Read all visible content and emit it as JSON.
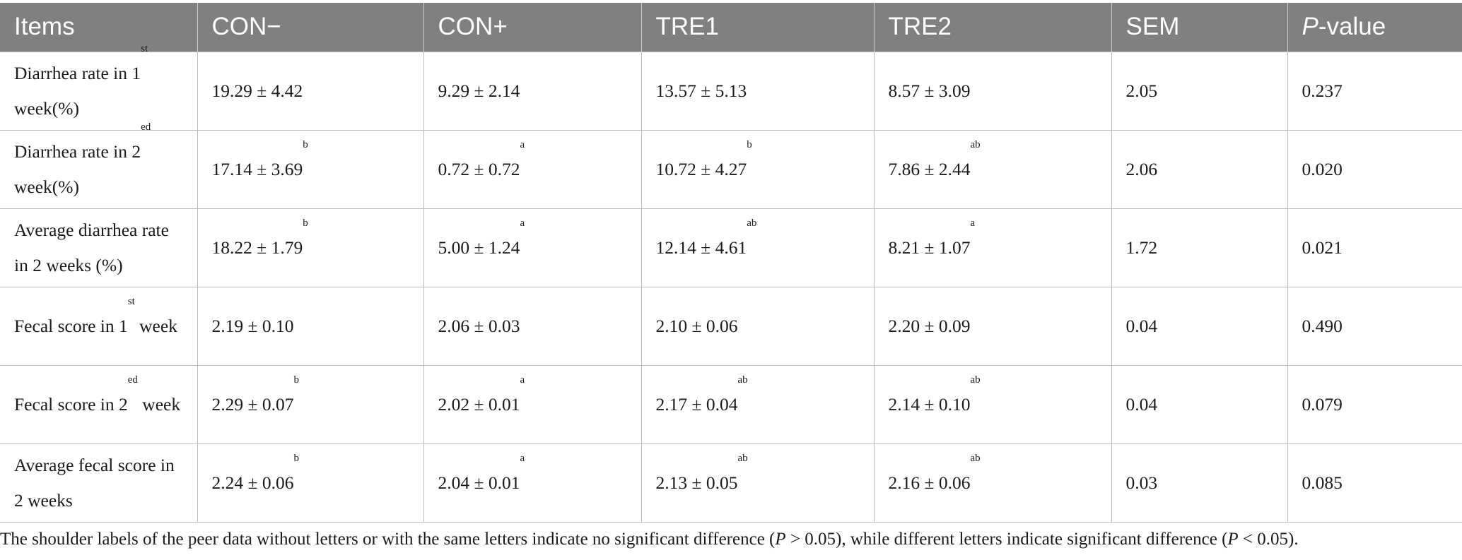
{
  "table": {
    "headers": [
      "Items",
      "CON−",
      "CON+",
      "TRE1",
      "TRE2",
      "SEM",
      "P-value"
    ],
    "header_pvalue_italic": "P",
    "header_pvalue_rest": "-value",
    "rows": [
      {
        "label_pre": "Diarrhea rate in 1",
        "label_sup": "st",
        "label_post": " week(%)",
        "cells": [
          {
            "v": "19.29 ± 4.42",
            "s": ""
          },
          {
            "v": "9.29 ± 2.14",
            "s": ""
          },
          {
            "v": "13.57 ± 5.13",
            "s": ""
          },
          {
            "v": "8.57 ± 3.09",
            "s": ""
          },
          {
            "v": "2.05",
            "s": ""
          },
          {
            "v": "0.237",
            "s": ""
          }
        ]
      },
      {
        "label_pre": "Diarrhea rate in 2",
        "label_sup": "ed",
        "label_post": " week(%)",
        "cells": [
          {
            "v": "17.14 ± 3.69",
            "s": "b"
          },
          {
            "v": "0.72 ± 0.72",
            "s": "a"
          },
          {
            "v": "10.72 ± 4.27",
            "s": "b"
          },
          {
            "v": "7.86 ± 2.44",
            "s": "ab"
          },
          {
            "v": "2.06",
            "s": ""
          },
          {
            "v": "0.020",
            "s": ""
          }
        ]
      },
      {
        "label_pre": "Average diarrhea rate in 2 weeks (%)",
        "label_sup": "",
        "label_post": "",
        "cells": [
          {
            "v": "18.22 ± 1.79",
            "s": "b"
          },
          {
            "v": "5.00 ± 1.24",
            "s": "a"
          },
          {
            "v": "12.14 ± 4.61",
            "s": "ab"
          },
          {
            "v": "8.21 ± 1.07",
            "s": "a"
          },
          {
            "v": "1.72",
            "s": ""
          },
          {
            "v": "0.021",
            "s": ""
          }
        ]
      },
      {
        "label_pre": "Fecal score in 1",
        "label_sup": "st",
        "label_post": " week",
        "cells": [
          {
            "v": "2.19 ± 0.10",
            "s": ""
          },
          {
            "v": "2.06 ± 0.03",
            "s": ""
          },
          {
            "v": "2.10 ± 0.06",
            "s": ""
          },
          {
            "v": "2.20 ± 0.09",
            "s": ""
          },
          {
            "v": "0.04",
            "s": ""
          },
          {
            "v": "0.490",
            "s": ""
          }
        ]
      },
      {
        "label_pre": "Fecal score in 2",
        "label_sup": "ed",
        "label_post": " week",
        "cells": [
          {
            "v": "2.29 ± 0.07",
            "s": "b"
          },
          {
            "v": "2.02 ± 0.01",
            "s": "a"
          },
          {
            "v": "2.17 ± 0.04",
            "s": "ab"
          },
          {
            "v": "2.14 ± 0.10",
            "s": "ab"
          },
          {
            "v": "0.04",
            "s": ""
          },
          {
            "v": "0.079",
            "s": ""
          }
        ]
      },
      {
        "label_pre": "Average fecal score in 2 weeks",
        "label_sup": "",
        "label_post": "",
        "cells": [
          {
            "v": "2.24 ± 0.06",
            "s": "b"
          },
          {
            "v": "2.04 ± 0.01",
            "s": "a"
          },
          {
            "v": "2.13 ± 0.05",
            "s": "ab"
          },
          {
            "v": "2.16 ± 0.06",
            "s": "ab"
          },
          {
            "v": "0.03",
            "s": ""
          },
          {
            "v": "0.085",
            "s": ""
          }
        ]
      }
    ]
  },
  "footnote": {
    "part1": "The shoulder labels of the peer data without letters or with the same letters indicate no significant difference (",
    "p1": "P",
    "part2": " > 0.05), while different letters indicate significant difference (",
    "p2": "P",
    "part3": " < 0.05)."
  },
  "colors": {
    "header_bg": "#808080",
    "header_text": "#ffffff",
    "grid": "#bdbdbd"
  }
}
